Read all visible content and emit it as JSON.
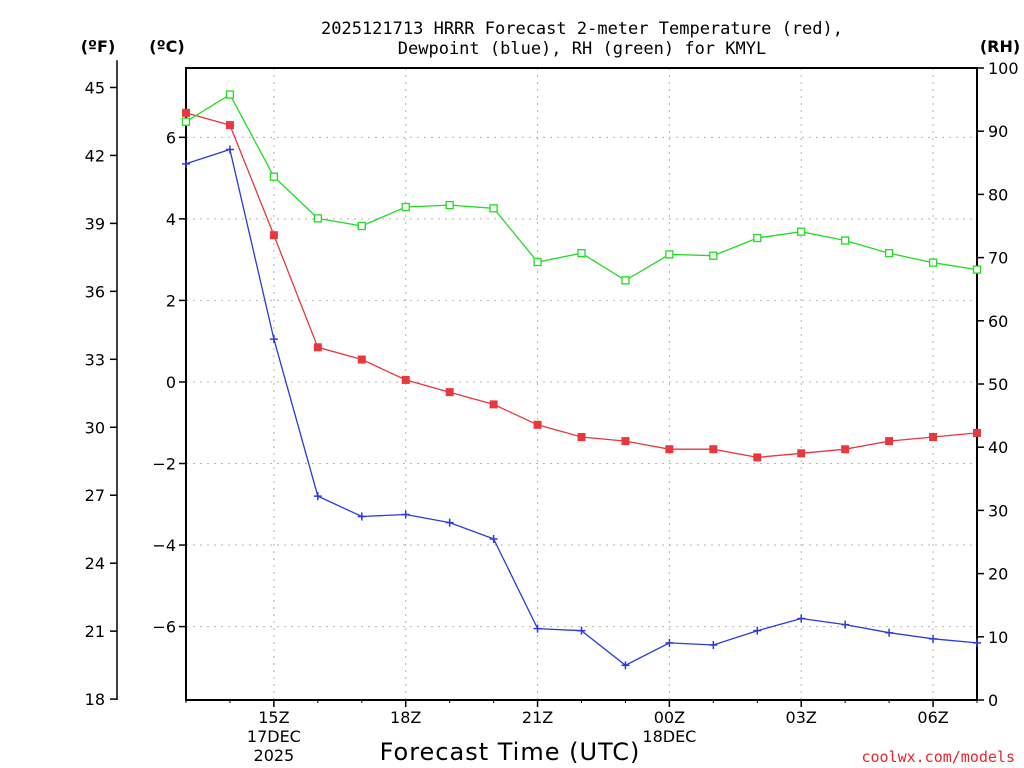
{
  "chart_data": {
    "type": "line",
    "title": [
      "2025121713 HRRR Forecast 2-meter Temperature (red),",
      "Dewpoint (blue), RH (green) for KMYL"
    ],
    "xlabel": "Forecast Time (UTC)",
    "credit": "coolwx.com/models",
    "units": {
      "left_outer": "(ºF)",
      "left_inner": "(ºC)",
      "right": "(RH)"
    },
    "x_hours": [
      13,
      14,
      15,
      16,
      17,
      18,
      19,
      20,
      21,
      22,
      23,
      24,
      25,
      26,
      27,
      28,
      29,
      30,
      31
    ],
    "x_range": [
      13,
      31
    ],
    "x_ticks": [
      {
        "hour": 15,
        "label": "15Z",
        "sub": [
          "17DEC",
          "2025"
        ]
      },
      {
        "hour": 18,
        "label": "18Z",
        "sub": []
      },
      {
        "hour": 21,
        "label": "21Z",
        "sub": []
      },
      {
        "hour": 24,
        "label": "00Z",
        "sub": [
          "18DEC"
        ]
      },
      {
        "hour": 27,
        "label": "03Z",
        "sub": []
      },
      {
        "hour": 30,
        "label": "06Z",
        "sub": []
      }
    ],
    "celsius_range": [
      -7.8,
      7.7
    ],
    "celsius_ticks": [
      6,
      4,
      2,
      0,
      -2,
      -4,
      -6
    ],
    "fahrenheit_ticks": [
      45,
      42,
      39,
      36,
      33,
      30,
      27,
      24,
      21,
      18
    ],
    "rh_range": [
      0,
      100
    ],
    "rh_ticks": [
      100,
      90,
      80,
      70,
      60,
      50,
      40,
      30,
      20,
      10,
      0
    ],
    "series": [
      {
        "name": "Temperature",
        "color": "#e8383d",
        "marker": "filled-square",
        "axis": "celsius",
        "values": [
          6.6,
          6.3,
          3.6,
          0.85,
          0.55,
          0.05,
          -0.25,
          -0.55,
          -1.05,
          -1.35,
          -1.45,
          -1.65,
          -1.65,
          -1.85,
          -1.75,
          -1.65,
          -1.45,
          -1.35,
          -1.25
        ]
      },
      {
        "name": "Dewpoint",
        "color": "#2a3bdc",
        "marker": "plus",
        "axis": "celsius",
        "values": [
          5.35,
          5.7,
          1.05,
          -2.8,
          -3.3,
          -3.25,
          -3.45,
          -3.85,
          -6.05,
          -6.1,
          -6.95,
          -6.4,
          -6.45,
          -6.1,
          -5.8,
          -5.95,
          -6.15,
          -6.3,
          -6.4
        ]
      },
      {
        "name": "RH",
        "color": "#20dd20",
        "marker": "open-square",
        "axis": "rh",
        "values": [
          91.5,
          95.8,
          82.8,
          76.2,
          75.0,
          78.0,
          78.3,
          77.8,
          69.3,
          70.7,
          66.4,
          70.5,
          70.3,
          73.1,
          74.1,
          72.7,
          70.7,
          69.2,
          68.1
        ]
      }
    ]
  }
}
